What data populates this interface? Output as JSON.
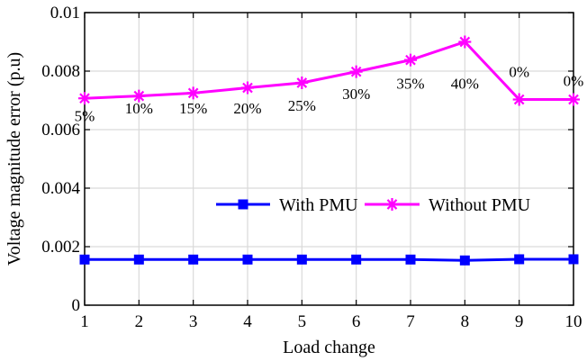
{
  "chart_data": {
    "type": "line",
    "xlabel": "Load change",
    "ylabel": "Voltage magnitude error (p.u)",
    "x": [
      1,
      2,
      3,
      4,
      5,
      6,
      7,
      8,
      9,
      10
    ],
    "xlim": [
      1,
      10
    ],
    "ylim": [
      0,
      0.01
    ],
    "xticks": [
      "1",
      "2",
      "3",
      "4",
      "5",
      "6",
      "7",
      "8",
      "9",
      "10"
    ],
    "yticks": [
      {
        "value": 0,
        "label": "0"
      },
      {
        "value": 0.002,
        "label": "0.002"
      },
      {
        "value": 0.004,
        "label": "0.004"
      },
      {
        "value": 0.006,
        "label": "0.006"
      },
      {
        "value": 0.008,
        "label": "0.008"
      },
      {
        "value": 0.01,
        "label": "0.01"
      }
    ],
    "grid": true,
    "legend_position": "center-right",
    "series": [
      {
        "name": "With PMU",
        "color": "#0000ff",
        "marker": "square",
        "values": [
          0.00156,
          0.00156,
          0.00156,
          0.00156,
          0.00156,
          0.00156,
          0.00156,
          0.00153,
          0.00157,
          0.00157
        ]
      },
      {
        "name": "Without PMU",
        "color": "#ff00ff",
        "marker": "asterisk",
        "values": [
          0.00707,
          0.00715,
          0.00725,
          0.00743,
          0.0076,
          0.00798,
          0.00838,
          0.009,
          0.00703,
          0.00703
        ]
      }
    ],
    "annotations": [
      {
        "x": 1,
        "y": 0.0063,
        "text": "5%"
      },
      {
        "x": 2,
        "y": 0.00655,
        "text": "10%"
      },
      {
        "x": 3,
        "y": 0.00655,
        "text": "15%"
      },
      {
        "x": 4,
        "y": 0.00655,
        "text": "20%"
      },
      {
        "x": 5,
        "y": 0.00665,
        "text": "25%"
      },
      {
        "x": 6,
        "y": 0.00705,
        "text": "30%"
      },
      {
        "x": 7,
        "y": 0.0074,
        "text": "35%"
      },
      {
        "x": 8,
        "y": 0.0074,
        "text": "40%"
      },
      {
        "x": 9,
        "y": 0.0078,
        "text": "0%"
      },
      {
        "x": 10,
        "y": 0.0075,
        "text": "0%"
      }
    ]
  }
}
